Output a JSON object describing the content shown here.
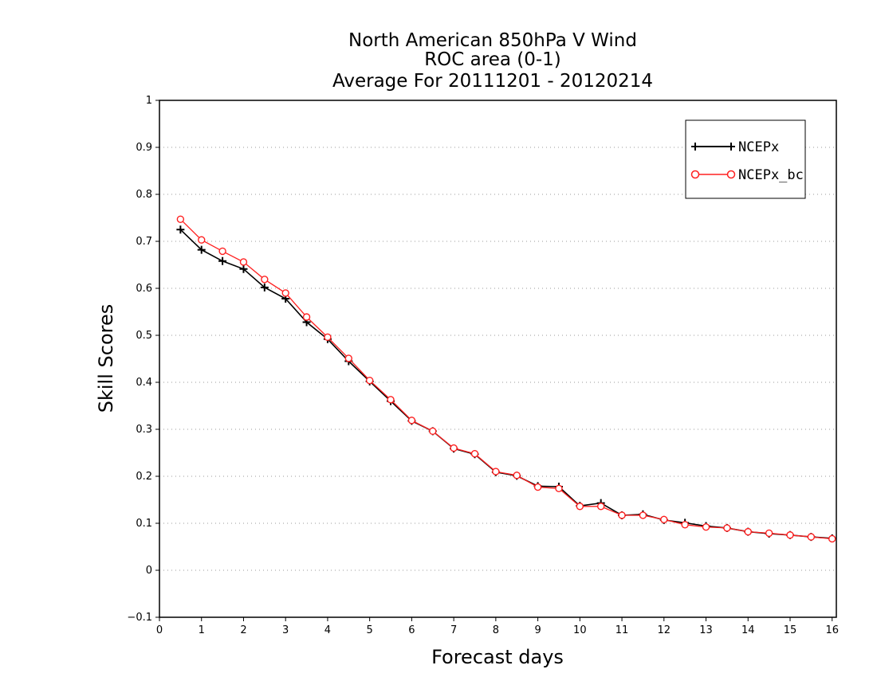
{
  "chart_data": {
    "type": "line",
    "title_lines": [
      "North American 850hPa V Wind",
      "ROC area (0-1)",
      "Average For 20111201 - 20120214"
    ],
    "xlabel": "Forecast days",
    "ylabel": "Skill Scores",
    "xlim": [
      0,
      16.1
    ],
    "ylim": [
      -0.1,
      1
    ],
    "x_ticks": [
      "0",
      "1",
      "2",
      "3",
      "4",
      "5",
      "6",
      "7",
      "8",
      "9",
      "10",
      "11",
      "12",
      "13",
      "14",
      "15",
      "16"
    ],
    "y_ticks": [
      "−0.1",
      "0",
      "0.1",
      "0.2",
      "0.3",
      "0.4",
      "0.5",
      "0.6",
      "0.7",
      "0.8",
      "0.9",
      "1"
    ],
    "grid": "horizontal dotted",
    "legend_position": "top-right",
    "x": [
      0.5,
      1,
      1.5,
      2,
      2.5,
      3,
      3.5,
      4,
      4.5,
      5,
      5.5,
      6,
      6.5,
      7,
      7.5,
      8,
      8.5,
      9,
      9.5,
      10,
      10.5,
      11,
      11.5,
      12,
      12.5,
      13,
      13.5,
      14,
      14.5,
      15,
      15.5,
      16
    ],
    "series": [
      {
        "name": "NCEPx",
        "color": "#000000",
        "marker": "plus",
        "values": [
          0.725,
          0.682,
          0.658,
          0.641,
          0.602,
          0.578,
          0.528,
          0.492,
          0.445,
          0.402,
          0.36,
          0.318,
          0.296,
          0.259,
          0.247,
          0.209,
          0.201,
          0.179,
          0.178,
          0.137,
          0.143,
          0.117,
          0.119,
          0.107,
          0.101,
          0.094,
          0.09,
          0.082,
          0.078,
          0.075,
          0.071,
          0.068
        ]
      },
      {
        "name": "NCEPx_bc",
        "color": "#ff2020",
        "marker": "circle",
        "values": [
          0.747,
          0.703,
          0.679,
          0.656,
          0.619,
          0.59,
          0.539,
          0.496,
          0.451,
          0.404,
          0.363,
          0.319,
          0.296,
          0.26,
          0.248,
          0.21,
          0.202,
          0.177,
          0.174,
          0.136,
          0.136,
          0.117,
          0.117,
          0.108,
          0.097,
          0.092,
          0.09,
          0.082,
          0.079,
          0.075,
          0.071,
          0.067
        ]
      }
    ]
  }
}
